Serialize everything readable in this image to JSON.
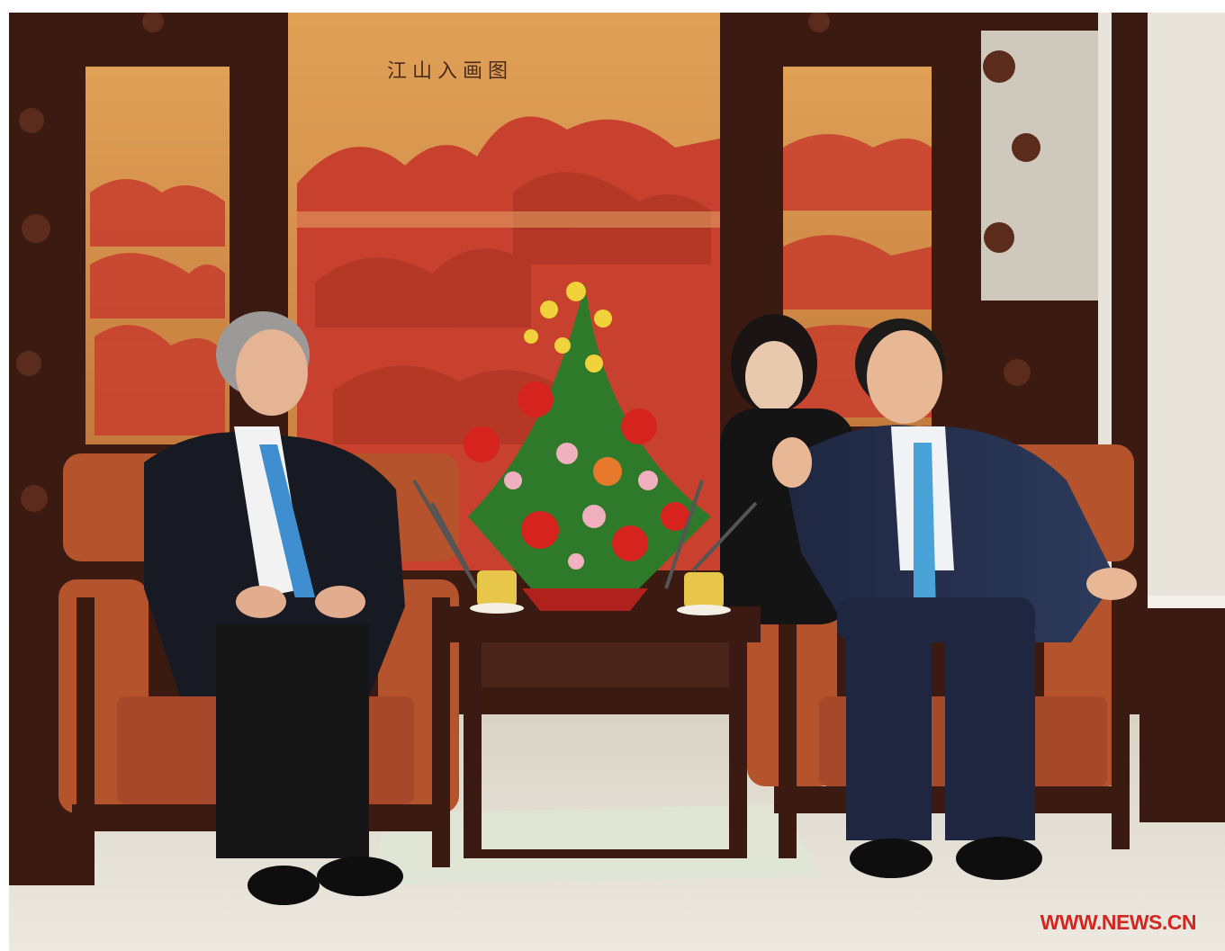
{
  "image": {
    "kind": "photograph",
    "screen_inscription": "江山入画图",
    "watermark": "WWW.NEWS.CN"
  },
  "colors": {
    "lacquer_red": "#c8412f",
    "panel_amber": "#d6904a",
    "wood_dark": "#3b1a12",
    "chair_orange": "#b4532c",
    "carpet": "#e4ded2",
    "watermark_red": "#d42620"
  }
}
